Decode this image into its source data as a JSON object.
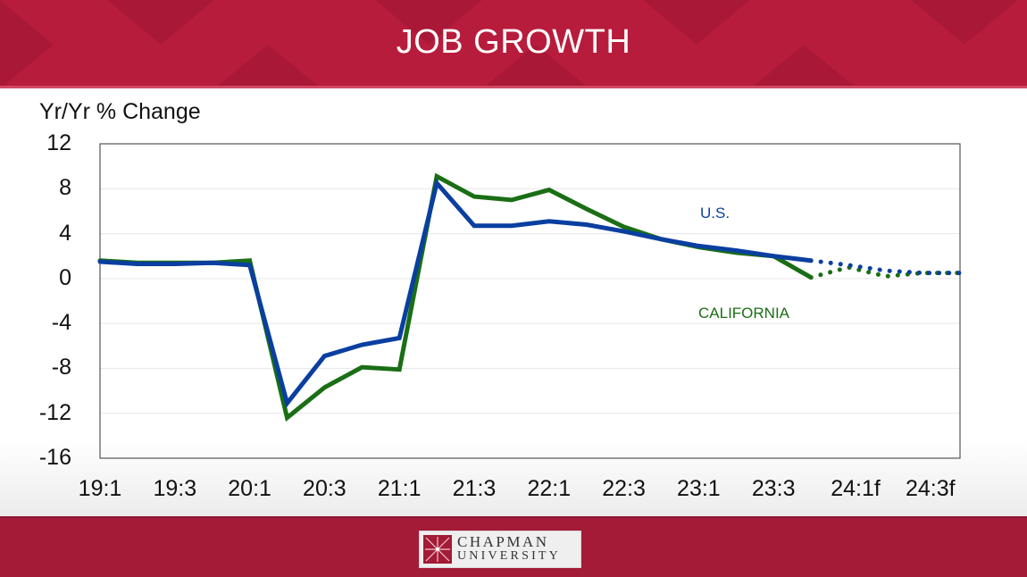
{
  "header": {
    "title": "JOB GROWTH",
    "background": "#b81c3c"
  },
  "footer": {
    "logo_line1": "CHAPMAN",
    "logo_line2": "UNIVERSITY",
    "background": "#a31b36"
  },
  "chart_data": {
    "type": "line",
    "title": "JOB GROWTH",
    "ylabel": "Yr/Yr % Change",
    "xlabel": "",
    "ylim": [
      -16,
      12
    ],
    "yticks": [
      "12",
      "8",
      "4",
      "0",
      "-4",
      "-8",
      "-12",
      "-16"
    ],
    "xtick_labels": [
      "19:1",
      "19:3",
      "20:1",
      "20:3",
      "21:1",
      "21:3",
      "22:1",
      "22:3",
      "23:1",
      "23:3",
      "24:1f",
      "24:3f"
    ],
    "grid": true,
    "categories": [
      "19:1",
      "19:2",
      "19:3",
      "19:4",
      "20:1",
      "20:2",
      "20:3",
      "20:4",
      "21:1",
      "21:2",
      "21:3",
      "21:4",
      "22:1",
      "22:2",
      "22:3",
      "22:4",
      "23:1",
      "23:2",
      "23:3",
      "23:4",
      "24:1f",
      "24:2f",
      "24:3f",
      "24:4f"
    ],
    "forecast_start_index": 19,
    "series": [
      {
        "name": "U.S.",
        "color": "#0a3fa0",
        "values": [
          1.5,
          1.3,
          1.3,
          1.4,
          1.2,
          -11.1,
          -6.9,
          -5.9,
          -5.3,
          8.5,
          4.7,
          4.7,
          5.1,
          4.8,
          4.2,
          3.5,
          2.9,
          2.5,
          2.0,
          1.6,
          1.2,
          0.7,
          0.5,
          0.5
        ]
      },
      {
        "name": "CALIFORNIA",
        "color": "#1a6e14",
        "values": [
          1.6,
          1.4,
          1.4,
          1.4,
          1.6,
          -12.4,
          -9.7,
          -7.9,
          -8.1,
          9.1,
          7.3,
          7.0,
          7.9,
          6.2,
          4.6,
          3.5,
          2.8,
          2.3,
          2.0,
          0.1,
          1.0,
          0.2,
          0.5,
          0.5
        ]
      }
    ],
    "annotations": [
      {
        "text": "U.S.",
        "color": "#0a3fa0"
      },
      {
        "text": "CALIFORNIA",
        "color": "#1a6e14"
      }
    ],
    "legend": "inline labels"
  }
}
